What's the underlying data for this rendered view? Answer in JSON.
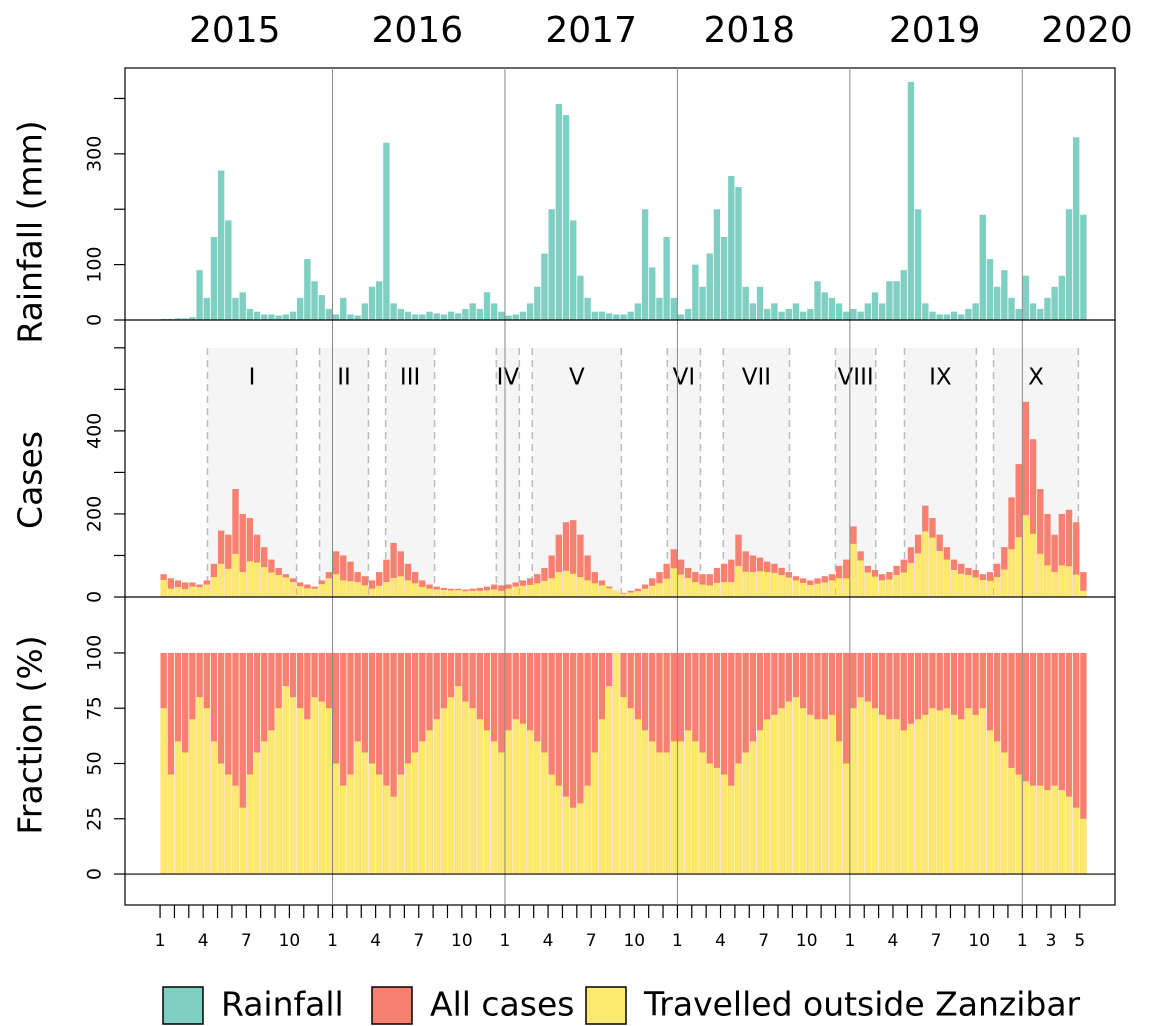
{
  "chart_data": {
    "type": "bar",
    "x": [
      0,
      0.5,
      1,
      1.5,
      2,
      2.5,
      3,
      3.5,
      4,
      4.5,
      5,
      5.5,
      6,
      6.5,
      7,
      7.5,
      8,
      8.5,
      9,
      9.5,
      10,
      10.5,
      11,
      11.5,
      12,
      12.5,
      13,
      13.5,
      14,
      14.5,
      15,
      15.5,
      16,
      16.5,
      17,
      17.5,
      18,
      18.5,
      19,
      19.5,
      20,
      20.5,
      21,
      21.5,
      22,
      22.5,
      23,
      23.5,
      24,
      24.5,
      25,
      25.5,
      26,
      26.5,
      27,
      27.5,
      28,
      28.5,
      29,
      29.5,
      30,
      30.5,
      31,
      31.5,
      32,
      32.5,
      33,
      33.5,
      34,
      34.5,
      35,
      35.5,
      36,
      36.5,
      37,
      37.5,
      38,
      38.5,
      39,
      39.5,
      40,
      40.5,
      41,
      41.5,
      42,
      42.5,
      43,
      43.5,
      44,
      44.5,
      45,
      45.5,
      46,
      46.5,
      47,
      47.5,
      48,
      48.5,
      49,
      49.5,
      50,
      50.5,
      51,
      51.5,
      52,
      52.5,
      53,
      53.5,
      54,
      54.5,
      55,
      55.5,
      56,
      56.5,
      57,
      57.5,
      58,
      58.5,
      59,
      59.5,
      60,
      60.5,
      61,
      61.5,
      62,
      62.5,
      63,
      63.5,
      64
    ],
    "bin_width": 0.5,
    "xlim": [
      -2.44,
      66.45
    ],
    "xticks": [
      {
        "value": 0,
        "label": "1"
      },
      {
        "value": 3,
        "label": "4"
      },
      {
        "value": 6,
        "label": "7"
      },
      {
        "value": 9,
        "label": "10"
      },
      {
        "value": 12,
        "label": "1"
      },
      {
        "value": 15,
        "label": "4"
      },
      {
        "value": 18,
        "label": "7"
      },
      {
        "value": 21,
        "label": "10"
      },
      {
        "value": 24,
        "label": "1"
      },
      {
        "value": 27,
        "label": "4"
      },
      {
        "value": 30,
        "label": "7"
      },
      {
        "value": 33,
        "label": "10"
      },
      {
        "value": 36,
        "label": "1"
      },
      {
        "value": 39,
        "label": "4"
      },
      {
        "value": 42,
        "label": "7"
      },
      {
        "value": 45,
        "label": "10"
      },
      {
        "value": 48,
        "label": "1"
      },
      {
        "value": 51,
        "label": "4"
      },
      {
        "value": 54,
        "label": "7"
      },
      {
        "value": 57,
        "label": "10"
      },
      {
        "value": 60,
        "label": "1"
      },
      {
        "value": 62,
        "label": "3"
      },
      {
        "value": 64,
        "label": "5"
      }
    ],
    "xticks_minor": [
      1,
      2,
      4,
      5,
      7,
      8,
      10,
      11,
      13,
      14,
      16,
      17,
      19,
      20,
      22,
      23,
      25,
      26,
      28,
      29,
      31,
      32,
      34,
      35,
      37,
      38,
      40,
      41,
      43,
      44,
      46,
      47,
      49,
      50,
      52,
      53,
      55,
      56,
      58,
      59,
      61,
      63
    ],
    "x2ticks": [
      {
        "value": 5.2,
        "label": "2015"
      },
      {
        "value": 17.9,
        "label": "2016"
      },
      {
        "value": 30,
        "label": "2017"
      },
      {
        "value": 41,
        "label": "2018"
      },
      {
        "value": 53.9,
        "label": "2019"
      },
      {
        "value": 64.5,
        "label": "2020"
      }
    ],
    "vlines": [
      12,
      24,
      36,
      48,
      60
    ],
    "panels": [
      {
        "ylabel": "Rainfall (mm)",
        "ylim": [
          0,
          455
        ],
        "yticks": [
          0,
          100,
          300
        ],
        "yticks_minor": [
          200,
          400
        ],
        "series": [
          {
            "name": "Rainfall",
            "color": "#80cfc3",
            "values": [
              2,
              2,
              3,
              3,
              5,
              90,
              40,
              150,
              270,
              180,
              40,
              50,
              20,
              15,
              10,
              10,
              8,
              10,
              15,
              40,
              110,
              70,
              45,
              20,
              10,
              40,
              10,
              8,
              30,
              60,
              70,
              320,
              30,
              20,
              15,
              10,
              10,
              15,
              12,
              10,
              15,
              12,
              20,
              30,
              20,
              50,
              30,
              15,
              8,
              10,
              15,
              30,
              60,
              120,
              200,
              390,
              370,
              180,
              80,
              40,
              15,
              15,
              12,
              10,
              10,
              15,
              30,
              200,
              95,
              40,
              150,
              40,
              10,
              20,
              100,
              60,
              120,
              200,
              150,
              260,
              240,
              60,
              30,
              60,
              20,
              30,
              15,
              20,
              30,
              15,
              20,
              70,
              50,
              40,
              30,
              15,
              20,
              15,
              30,
              50,
              30,
              70,
              70,
              90,
              430,
              200,
              30,
              15,
              10,
              10,
              15,
              10,
              20,
              30,
              190,
              110,
              60,
              90,
              40,
              20,
              80,
              30,
              20,
              40,
              60,
              80,
              200,
              330,
              190
            ]
          }
        ]
      },
      {
        "ylabel": "Cases",
        "ylim": [
          0,
          667
        ],
        "yticks": [
          0,
          200,
          400
        ],
        "yticks_minor": [
          100,
          300,
          500,
          600
        ],
        "periods": [
          {
            "label": "I",
            "start": 3.3,
            "end": 9.5
          },
          {
            "label": "II",
            "start": 11.1,
            "end": 14.5
          },
          {
            "label": "III",
            "start": 15.7,
            "end": 19.1
          },
          {
            "label": "IV",
            "start": 23.4,
            "end": 25
          },
          {
            "label": "V",
            "start": 25.9,
            "end": 32.1
          },
          {
            "label": "VI",
            "start": 35.3,
            "end": 37.6
          },
          {
            "label": "VII",
            "start": 39.2,
            "end": 43.8
          },
          {
            "label": "VIII",
            "start": 47,
            "end": 49.8
          },
          {
            "label": "IX",
            "start": 51.8,
            "end": 56.8
          },
          {
            "label": "X",
            "start": 58,
            "end": 63.9
          }
        ],
        "series": [
          {
            "name": "All cases",
            "color": "#f88070",
            "values": [
              55,
              45,
              40,
              35,
              35,
              30,
              40,
              80,
              160,
              150,
              260,
              200,
              190,
              150,
              120,
              90,
              70,
              55,
              45,
              35,
              30,
              25,
              40,
              60,
              110,
              100,
              85,
              60,
              50,
              40,
              60,
              90,
              130,
              110,
              80,
              60,
              40,
              30,
              25,
              22,
              20,
              20,
              18,
              20,
              22,
              25,
              30,
              28,
              30,
              35,
              40,
              45,
              55,
              70,
              100,
              150,
              180,
              185,
              150,
              100,
              60,
              40,
              25,
              15,
              10,
              15,
              20,
              30,
              45,
              60,
              80,
              115,
              90,
              70,
              60,
              55,
              55,
              70,
              80,
              90,
              150,
              110,
              100,
              95,
              85,
              80,
              70,
              60,
              50,
              45,
              40,
              45,
              50,
              55,
              75,
              90,
              170,
              110,
              75,
              65,
              55,
              60,
              75,
              90,
              120,
              150,
              220,
              190,
              150,
              120,
              90,
              80,
              70,
              65,
              55,
              60,
              80,
              120,
              240,
              320,
              470,
              380,
              260,
              200,
              150,
              200,
              210,
              180,
              60
            ]
          },
          {
            "name": "Travelled outside Zanzibar",
            "color": "#fde870",
            "values": [
              41,
              20,
              24,
              19,
              25,
              24,
              30,
              48,
              80,
              68,
              104,
              60,
              86,
              83,
              72,
              59,
              53,
              47,
              36,
              26,
              21,
              20,
              31,
              45,
              55,
              40,
              38,
              36,
              28,
              20,
              27,
              36,
              46,
              50,
              40,
              33,
              24,
              20,
              18,
              17,
              16,
              17,
              14,
              15,
              15,
              16,
              18,
              15,
              20,
              25,
              27,
              29,
              33,
              39,
              45,
              60,
              63,
              56,
              48,
              40,
              33,
              28,
              21,
              15,
              8,
              11,
              14,
              20,
              27,
              33,
              44,
              69,
              54,
              46,
              36,
              30,
              28,
              34,
              36,
              36,
              75,
              61,
              60,
              62,
              60,
              58,
              53,
              47,
              40,
              34,
              29,
              32,
              35,
              40,
              45,
              45,
              128,
              88,
              59,
              49,
              40,
              42,
              53,
              59,
              82,
              105,
              158,
              143,
              111,
              90,
              65,
              56,
              53,
              47,
              41,
              39,
              48,
              66,
              115,
              144,
              197,
              152,
              104,
              76,
              60,
              76,
              74,
              54,
              15
            ]
          }
        ]
      },
      {
        "ylabel": "Fraction (%)",
        "ylim": [
          -14,
          125.3
        ],
        "yticks": [
          0,
          25,
          50,
          75,
          100
        ],
        "yticks_minor": [],
        "series": [
          {
            "name": "All cases",
            "color": "#f88070",
            "values": [
              100,
              100,
              100,
              100,
              100,
              100,
              100,
              100,
              100,
              100,
              100,
              100,
              100,
              100,
              100,
              100,
              100,
              100,
              100,
              100,
              100,
              100,
              100,
              100,
              100,
              100,
              100,
              100,
              100,
              100,
              100,
              100,
              100,
              100,
              100,
              100,
              100,
              100,
              100,
              100,
              100,
              100,
              100,
              100,
              100,
              100,
              100,
              100,
              100,
              100,
              100,
              100,
              100,
              100,
              100,
              100,
              100,
              100,
              100,
              100,
              100,
              100,
              100,
              100,
              100,
              100,
              100,
              100,
              100,
              100,
              100,
              100,
              100,
              100,
              100,
              100,
              100,
              100,
              100,
              100,
              100,
              100,
              100,
              100,
              100,
              100,
              100,
              100,
              100,
              100,
              100,
              100,
              100,
              100,
              100,
              100,
              100,
              100,
              100,
              100,
              100,
              100,
              100,
              100,
              100,
              100,
              100,
              100,
              100,
              100,
              100,
              100,
              100,
              100,
              100,
              100,
              100,
              100,
              100,
              100,
              100,
              100,
              100,
              100,
              100,
              100,
              100,
              100,
              100
            ]
          },
          {
            "name": "Travelled outside Zanzibar",
            "color": "#fde870",
            "values": [
              75,
              45,
              60,
              55,
              70,
              80,
              75,
              60,
              50,
              45,
              40,
              30,
              45,
              55,
              60,
              65,
              75,
              85,
              80,
              75,
              70,
              80,
              78,
              75,
              50,
              40,
              45,
              60,
              55,
              50,
              45,
              40,
              35,
              45,
              50,
              55,
              60,
              65,
              70,
              75,
              80,
              85,
              78,
              75,
              70,
              65,
              60,
              55,
              65,
              70,
              68,
              65,
              60,
              55,
              45,
              40,
              35,
              30,
              32,
              40,
              55,
              70,
              85,
              100,
              80,
              75,
              70,
              65,
              60,
              55,
              55,
              60,
              60,
              65,
              60,
              55,
              50,
              48,
              45,
              40,
              50,
              55,
              60,
              65,
              70,
              72,
              75,
              78,
              80,
              75,
              72,
              70,
              70,
              72,
              60,
              50,
              75,
              80,
              78,
              75,
              72,
              70,
              70,
              65,
              68,
              70,
              72,
              75,
              74,
              75,
              72,
              70,
              75,
              72,
              75,
              65,
              60,
              55,
              48,
              45,
              42,
              40,
              40,
              38,
              40,
              38,
              35,
              30,
              25
            ]
          }
        ]
      }
    ]
  }
}
